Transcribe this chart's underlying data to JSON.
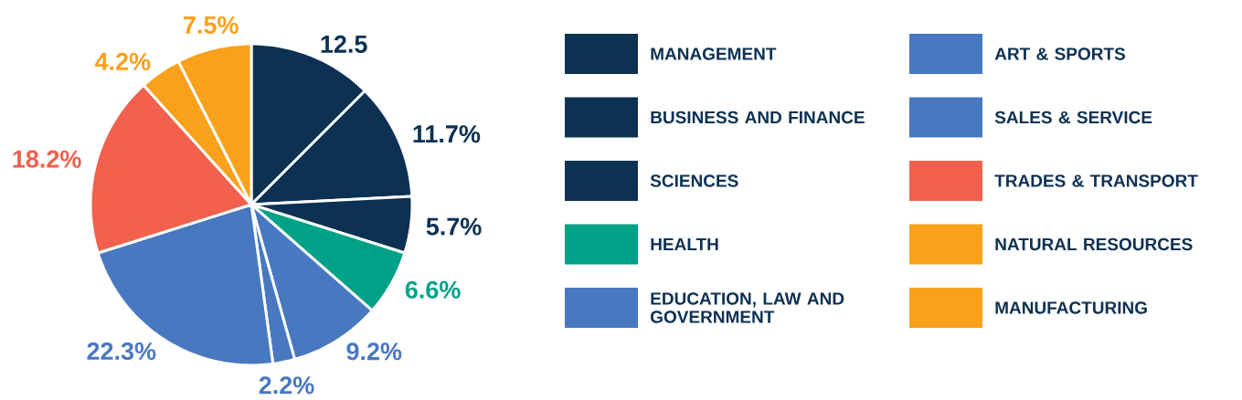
{
  "chart_data": {
    "type": "pie",
    "categories": [
      "MANAGEMENT",
      "BUSINESS AND FINANCE",
      "SCIENCES",
      "HEALTH",
      "EDUCATION, LAW AND GOVERNMENT",
      "ART & SPORTS",
      "SALES & SERVICE",
      "TRADES & TRANSPORT",
      "NATURAL RESOURCES",
      "MANUFACTURING"
    ],
    "values": [
      12.5,
      11.7,
      5.7,
      6.6,
      9.2,
      2.2,
      22.3,
      18.2,
      4.2,
      7.5
    ],
    "colors": [
      "#0d3153",
      "#0d3153",
      "#0d3153",
      "#00a287",
      "#4878bf",
      "#4878bf",
      "#4878bf",
      "#f0604d",
      "#f9a11b",
      "#f9a11b"
    ],
    "value_labels": [
      "12.5",
      "11.7%",
      "5.7%",
      "6.6%",
      "9.2%",
      "2.2%",
      "22.3%",
      "18.2%",
      "4.2%",
      "7.5%"
    ],
    "legend": "right"
  }
}
